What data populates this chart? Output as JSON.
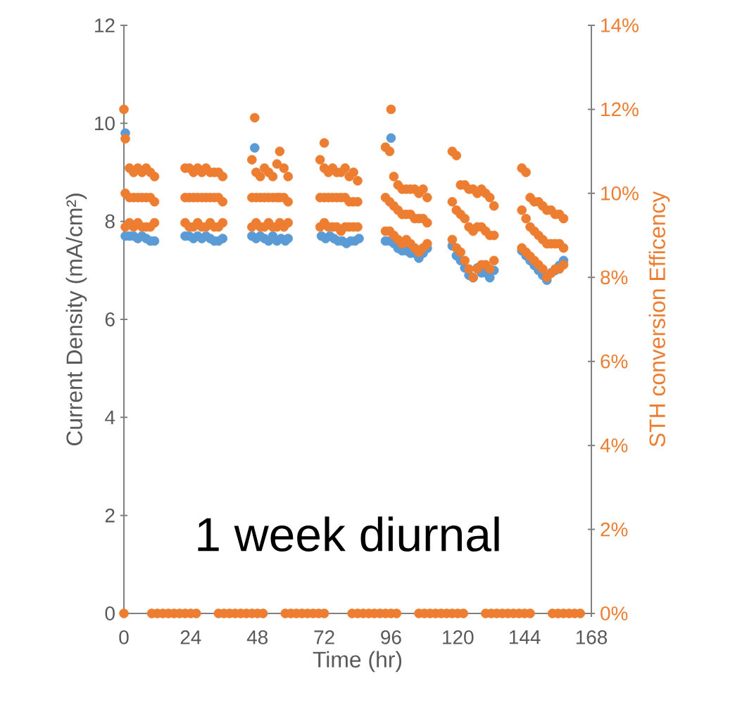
{
  "chart_data": {
    "type": "scatter",
    "xlabel": "Time (hr)",
    "ylabel": "Current Density  (mA/cm²)",
    "y2label": "STH conversion Efficency",
    "annotations": [
      "1 week diurnal"
    ],
    "marker": "circle",
    "legend": false,
    "grid": false,
    "xlim": [
      0,
      168
    ],
    "xticks": [
      0,
      24,
      48,
      72,
      96,
      120,
      144,
      168
    ],
    "ylim": [
      0,
      12
    ],
    "yticks": [
      0,
      2,
      4,
      6,
      8,
      10,
      12
    ],
    "y2lim": [
      0,
      14
    ],
    "y2ticks": [
      {
        "value": 0,
        "label": "0%"
      },
      {
        "value": 2,
        "label": "2%"
      },
      {
        "value": 4,
        "label": "4%"
      },
      {
        "value": 6,
        "label": "6%"
      },
      {
        "value": 8,
        "label": "8%"
      },
      {
        "value": 10,
        "label": "10%"
      },
      {
        "value": 12,
        "label": "12%"
      },
      {
        "value": 14,
        "label": "14%"
      }
    ],
    "series": [
      {
        "color": "#5b9bd5",
        "x": [
          0.5,
          0.5,
          2,
          3.5,
          5,
          6.5,
          8,
          9.5,
          11,
          22,
          23.5,
          25,
          26.5,
          28,
          29.5,
          31,
          32.5,
          34,
          35.5,
          47,
          46,
          47.5,
          49,
          50.5,
          52,
          53.5,
          55,
          56.5,
          58,
          59,
          71,
          72.5,
          74,
          75.5,
          77,
          78.5,
          80,
          81.5,
          83,
          84.5,
          96,
          94,
          95.5,
          97,
          98.5,
          100,
          101.5,
          103,
          104.5,
          106,
          107.5,
          109,
          118,
          119.5,
          121,
          122.5,
          124,
          125.5,
          127,
          128.5,
          130,
          131.5,
          133,
          143,
          144.5,
          146,
          147.5,
          149,
          150.5,
          152,
          153.5,
          155,
          156.5,
          158
        ],
        "values": [
          9.8,
          7.7,
          7.7,
          7.7,
          7.65,
          7.7,
          7.65,
          7.6,
          7.6,
          7.7,
          7.7,
          7.65,
          7.7,
          7.65,
          7.7,
          7.65,
          7.6,
          7.6,
          7.65,
          9.5,
          7.7,
          7.65,
          7.7,
          7.65,
          7.6,
          7.7,
          7.6,
          7.65,
          7.6,
          7.65,
          7.7,
          7.65,
          7.7,
          7.65,
          7.6,
          7.6,
          7.55,
          7.6,
          7.6,
          7.65,
          9.7,
          7.6,
          7.6,
          7.55,
          7.45,
          7.4,
          7.4,
          7.35,
          7.35,
          7.25,
          7.35,
          7.45,
          7.5,
          7.3,
          7.2,
          7.05,
          6.9,
          6.85,
          7.05,
          6.95,
          6.95,
          6.85,
          7.0,
          7.4,
          7.3,
          7.2,
          7.1,
          7.0,
          6.9,
          6.8,
          6.95,
          7.0,
          7.1,
          7.2
        ]
      },
      {
        "color": "#ed7d31",
        "axis": "y2",
        "x": [
          0,
          0.5,
          0.5,
          0.5,
          2,
          2,
          2,
          3.5,
          3.5,
          3.5,
          5,
          5,
          5,
          6.5,
          6.5,
          6.5,
          8,
          8,
          8,
          9.5,
          9.5,
          9.5,
          11,
          11,
          11,
          22,
          22,
          22,
          23.5,
          23.5,
          23.5,
          25,
          25,
          25,
          26.5,
          26.5,
          26.5,
          28,
          28,
          28,
          29.5,
          29.5,
          29.5,
          31,
          31,
          31,
          32.5,
          32.5,
          32.5,
          34,
          34,
          34,
          35.5,
          35.5,
          35.5,
          47,
          46,
          46,
          46,
          47.5,
          47.5,
          47.5,
          49,
          49,
          49,
          50.5,
          50.5,
          50.5,
          52,
          52,
          52,
          53.5,
          53.5,
          53.5,
          55,
          55,
          55,
          56,
          56,
          56,
          57.5,
          57.5,
          57.5,
          59,
          59,
          59,
          72,
          70.5,
          70.5,
          70.5,
          72,
          72,
          72,
          73.5,
          73.5,
          73.5,
          75,
          75,
          75,
          76.5,
          76.5,
          76.5,
          78,
          78,
          78,
          79.5,
          79.5,
          79.5,
          81,
          81,
          81,
          82.5,
          82.5,
          82.5,
          84,
          84,
          84,
          96,
          94,
          94,
          94,
          95.5,
          95.5,
          95.5,
          97,
          97,
          97,
          98.5,
          98.5,
          98.5,
          100,
          100,
          100,
          101.5,
          101.5,
          101.5,
          103,
          103,
          103,
          104.5,
          104.5,
          104.5,
          106,
          106,
          106,
          107.5,
          107.5,
          107.5,
          109,
          109,
          109,
          118,
          118,
          118,
          119.5,
          119.5,
          119.5,
          121,
          121,
          121,
          122.5,
          122.5,
          122.5,
          124,
          124,
          124,
          125.5,
          125.5,
          125.5,
          127,
          127,
          127,
          128.5,
          128.5,
          128.5,
          130,
          130,
          130,
          131.5,
          131.5,
          131.5,
          133,
          133,
          133,
          143,
          143,
          143,
          144.5,
          144.5,
          144.5,
          146,
          146,
          146,
          147.5,
          147.5,
          147.5,
          149,
          149,
          149,
          150.5,
          150.5,
          150.5,
          152,
          152,
          152,
          153.5,
          153.5,
          153.5,
          155,
          155,
          155,
          156.5,
          156.5,
          156.5,
          158,
          158,
          158,
          0,
          10,
          12,
          14,
          16,
          18,
          20,
          22,
          24,
          26,
          34,
          36,
          38,
          40,
          42,
          44,
          46,
          48,
          50,
          58,
          60,
          62,
          64,
          66,
          68,
          70,
          72,
          82,
          84,
          86,
          88,
          90,
          92,
          94,
          96,
          98,
          106,
          108,
          110,
          112,
          114,
          116,
          118,
          120,
          122,
          130,
          132,
          134,
          136,
          138,
          140,
          142,
          144,
          146,
          154,
          156,
          158,
          160,
          162,
          164
        ],
        "values": [
          12.0,
          11.3,
          10.0,
          9.2,
          10.6,
          9.9,
          9.3,
          10.5,
          9.9,
          9.2,
          10.6,
          9.9,
          9.3,
          10.5,
          9.9,
          9.2,
          10.6,
          9.9,
          9.2,
          10.5,
          9.9,
          9.2,
          10.4,
          9.8,
          9.3,
          10.6,
          9.9,
          9.3,
          10.6,
          9.9,
          9.2,
          10.5,
          9.9,
          9.2,
          10.6,
          9.9,
          9.3,
          10.5,
          9.9,
          9.2,
          10.6,
          9.9,
          9.2,
          10.5,
          9.9,
          9.3,
          10.5,
          9.9,
          9.2,
          10.5,
          9.9,
          9.2,
          10.4,
          9.8,
          9.3,
          11.8,
          10.8,
          9.9,
          9.2,
          10.5,
          9.9,
          9.3,
          10.4,
          9.9,
          9.2,
          10.6,
          9.9,
          9.2,
          10.5,
          9.9,
          9.3,
          10.4,
          9.9,
          9.2,
          10.7,
          9.9,
          9.2,
          11.0,
          9.9,
          9.3,
          10.6,
          9.9,
          9.2,
          10.4,
          9.8,
          9.3,
          11.2,
          10.8,
          9.9,
          9.2,
          10.6,
          9.9,
          9.3,
          10.5,
          9.9,
          9.2,
          10.6,
          9.9,
          9.2,
          10.5,
          9.9,
          9.2,
          10.5,
          9.9,
          9.1,
          10.6,
          9.9,
          9.2,
          10.4,
          9.8,
          9.2,
          10.5,
          9.8,
          9.2,
          10.3,
          9.8,
          9.2,
          12.0,
          11.1,
          9.9,
          9.1,
          11.0,
          9.8,
          9.1,
          10.4,
          9.7,
          9.0,
          10.2,
          9.6,
          8.9,
          10.1,
          9.5,
          8.8,
          10.1,
          9.5,
          8.9,
          10.1,
          9.5,
          8.8,
          10.1,
          9.4,
          8.7,
          10.0,
          9.4,
          8.6,
          10.1,
          9.4,
          8.7,
          9.9,
          9.3,
          8.8,
          11.0,
          9.8,
          8.9,
          10.9,
          9.6,
          8.7,
          10.2,
          9.5,
          8.6,
          10.2,
          9.4,
          8.4,
          10.1,
          9.2,
          8.2,
          10.1,
          9.1,
          8.0,
          10.0,
          9.2,
          8.2,
          10.1,
          9.2,
          8.3,
          10.0,
          9.1,
          8.3,
          9.9,
          9.0,
          8.2,
          9.7,
          9.0,
          8.4,
          10.6,
          9.6,
          8.7,
          10.5,
          9.4,
          8.6,
          9.9,
          9.2,
          8.5,
          9.8,
          9.1,
          8.4,
          9.8,
          9.0,
          8.3,
          9.7,
          8.9,
          8.2,
          9.6,
          8.8,
          8.0,
          9.6,
          8.8,
          8.1,
          9.5,
          8.8,
          8.2,
          9.5,
          8.8,
          8.2,
          9.4,
          8.7,
          8.3,
          0,
          0,
          0,
          0,
          0,
          0,
          0,
          0,
          0,
          0,
          0,
          0,
          0,
          0,
          0,
          0,
          0,
          0,
          0,
          0,
          0,
          0,
          0,
          0,
          0,
          0,
          0,
          0,
          0,
          0,
          0,
          0,
          0,
          0,
          0,
          0,
          0,
          0,
          0,
          0,
          0,
          0,
          0,
          0,
          0,
          0,
          0,
          0,
          0,
          0,
          0,
          0,
          0,
          0,
          0,
          0,
          0,
          0,
          0,
          0
        ]
      }
    ]
  }
}
